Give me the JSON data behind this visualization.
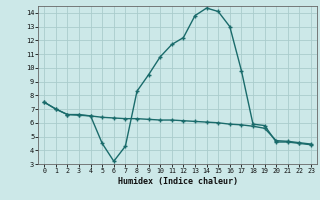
{
  "xlabel": "Humidex (Indice chaleur)",
  "bg_color": "#cce8e8",
  "grid_color": "#aacccc",
  "line_color": "#1a6b6b",
  "xlim": [
    -0.5,
    23.5
  ],
  "ylim": [
    3,
    14.5
  ],
  "yticks": [
    3,
    4,
    5,
    6,
    7,
    8,
    9,
    10,
    11,
    12,
    13,
    14
  ],
  "xticks": [
    0,
    1,
    2,
    3,
    4,
    5,
    6,
    7,
    8,
    9,
    10,
    11,
    12,
    13,
    14,
    15,
    16,
    17,
    18,
    19,
    20,
    21,
    22,
    23
  ],
  "line1_x": [
    0,
    1,
    2,
    3,
    4,
    5,
    6,
    7,
    8,
    9,
    10,
    11,
    12,
    13,
    14,
    15,
    16,
    17,
    18,
    19,
    20,
    21,
    22,
    23
  ],
  "line1_y": [
    7.5,
    7.0,
    6.6,
    6.6,
    6.5,
    4.5,
    3.2,
    4.3,
    8.3,
    9.5,
    10.8,
    11.7,
    12.2,
    13.8,
    14.35,
    14.1,
    13.0,
    9.8,
    5.9,
    5.8,
    4.6,
    4.6,
    4.5,
    4.4
  ],
  "line2_x": [
    0,
    1,
    2,
    3,
    4,
    5,
    6,
    7,
    8,
    9,
    10,
    11,
    12,
    13,
    14,
    15,
    16,
    17,
    18,
    19,
    20,
    21,
    22,
    23
  ],
  "line2_y": [
    7.5,
    7.0,
    6.6,
    6.55,
    6.5,
    6.4,
    6.35,
    6.3,
    6.3,
    6.25,
    6.2,
    6.2,
    6.15,
    6.1,
    6.05,
    6.0,
    5.9,
    5.85,
    5.75,
    5.6,
    4.7,
    4.65,
    4.55,
    4.45
  ]
}
